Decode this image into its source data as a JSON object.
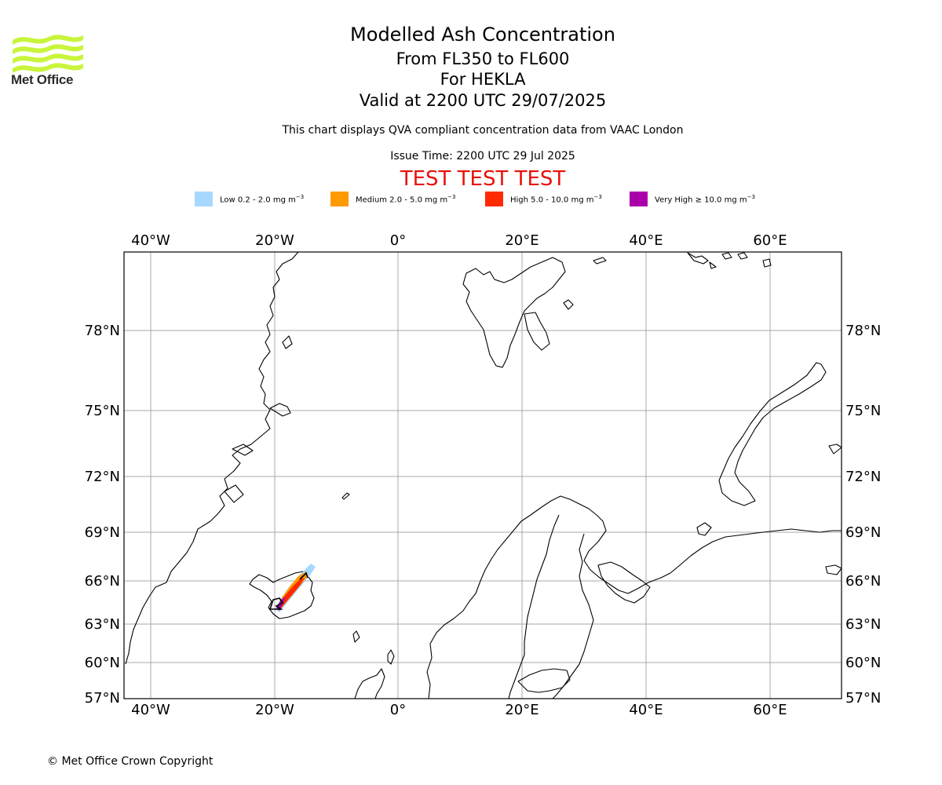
{
  "branding": {
    "logo_text": "Met Office",
    "logo_color": "#c8f53c"
  },
  "header": {
    "title": "Modelled Ash Concentration",
    "flight_levels": "From FL350 to FL600",
    "volcano": "For HEKLA",
    "valid_time": "Valid at 2200 UTC 29/07/2025",
    "subtitle": "This chart displays QVA compliant concentration data from VAAC London",
    "issue_time": "Issue Time: 2200 UTC 29 Jul 2025",
    "test_banner": "TEST TEST TEST"
  },
  "legend": [
    {
      "label": "Low 0.2 - 2.0 mg m",
      "unit_exp": "−3",
      "color": "#a6d8ff"
    },
    {
      "label": "Medium 2.0 - 5.0 mg m",
      "unit_exp": "−3",
      "color": "#ff9a00"
    },
    {
      "label": "High 5.0 - 10.0 mg m",
      "unit_exp": "−3",
      "color": "#ff2a00"
    },
    {
      "label": "Very High ≥ 10.0 mg m",
      "unit_exp": "−3",
      "color": "#aa00aa"
    }
  ],
  "map": {
    "lon_labels": [
      "40°W",
      "20°W",
      "0°",
      "20°E",
      "40°E",
      "60°E"
    ],
    "lat_labels": [
      "78°N",
      "75°N",
      "72°N",
      "69°N",
      "66°N",
      "63°N",
      "60°N",
      "57°N"
    ],
    "grid_color": "#aaaaaa",
    "volcano_name": "HEKLA",
    "ash_levels": [
      "low",
      "medium",
      "high",
      "very-high"
    ]
  },
  "footer": {
    "copyright": "© Met Office Crown Copyright"
  }
}
